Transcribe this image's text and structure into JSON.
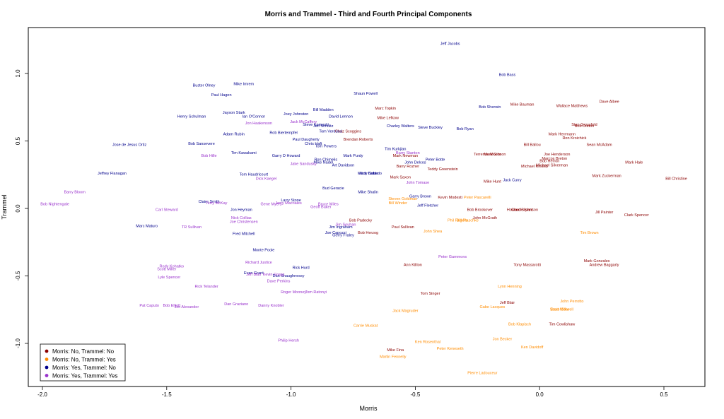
{
  "chart_data": {
    "type": "scatter",
    "title": "Morris and Trammel - Third and Fourth Principal Components",
    "xlabel": "Morris",
    "ylabel": "Trammel",
    "xlim": [
      -2.05,
      0.65
    ],
    "ylim": [
      -1.27,
      1.3
    ],
    "xticks": [
      -2.0,
      -1.5,
      -1.0,
      -0.5,
      0.0,
      0.5
    ],
    "xtick_labels": [
      "-2.0",
      "-1.5",
      "-1.0",
      "-0.5",
      "0.0",
      "0.5"
    ],
    "yticks": [
      -1.0,
      -0.5,
      0.0,
      0.5,
      1.0
    ],
    "ytick_labels": [
      "-1.0",
      "-0.5",
      "0.0",
      "0.5",
      "1.0"
    ],
    "grid": false,
    "legend_position": "bottom-left",
    "series": [
      {
        "name": "Morris: No, Trammel: No",
        "color": "#8b0000",
        "points": [
          {
            "label": "Dave Albee",
            "x": 0.28,
            "y": 0.79
          },
          {
            "label": "Marc Topkin",
            "x": -0.62,
            "y": 0.74
          },
          {
            "label": "Mike Bauman",
            "x": -0.07,
            "y": 0.77
          },
          {
            "label": "Wallace Matthews",
            "x": 0.13,
            "y": 0.76
          },
          {
            "label": "Mike Lefkow",
            "x": -0.61,
            "y": 0.67
          },
          {
            "label": "Chaz Scoggins",
            "x": -0.77,
            "y": 0.57
          },
          {
            "label": "Brendan Roberts",
            "x": -0.73,
            "y": 0.51
          },
          {
            "label": "Stan Grossfeld",
            "x": 0.18,
            "y": 0.62
          },
          {
            "label": "Bob Dutton",
            "x": 0.18,
            "y": 0.61
          },
          {
            "label": "Mark Herrmann",
            "x": 0.09,
            "y": 0.55
          },
          {
            "label": "Ron Kroichick",
            "x": 0.14,
            "y": 0.52
          },
          {
            "label": "Bill Ballou",
            "x": -0.03,
            "y": 0.47
          },
          {
            "label": "Sean McAdam",
            "x": 0.24,
            "y": 0.47
          },
          {
            "label": "Mark Newman",
            "x": -0.54,
            "y": 0.39
          },
          {
            "label": "Terrence Moore",
            "x": -0.21,
            "y": 0.4
          },
          {
            "label": "Mark Gibson",
            "x": -0.18,
            "y": 0.4
          },
          {
            "label": "Joe Henderson",
            "x": 0.07,
            "y": 0.4
          },
          {
            "label": "Marcos Breton",
            "x": 0.06,
            "y": 0.37
          },
          {
            "label": "Bob Herron",
            "x": 0.04,
            "y": 0.35
          },
          {
            "label": "Michael Silverman",
            "x": 0.05,
            "y": 0.32
          },
          {
            "label": "Michael Knisley",
            "x": -0.02,
            "y": 0.31
          },
          {
            "label": "Mark Hale",
            "x": 0.38,
            "y": 0.34
          },
          {
            "label": "Barry Rozner",
            "x": -0.53,
            "y": 0.31
          },
          {
            "label": "Teddy Greenstein",
            "x": -0.39,
            "y": 0.29
          },
          {
            "label": "Mark Saxon",
            "x": -0.56,
            "y": 0.23
          },
          {
            "label": "Mark Zuckerman",
            "x": 0.27,
            "y": 0.24
          },
          {
            "label": "Mike Hunt",
            "x": -0.19,
            "y": 0.2
          },
          {
            "label": "Bill Christine",
            "x": 0.55,
            "y": 0.22
          },
          {
            "label": "Kevin Modesti",
            "x": -0.36,
            "y": 0.08
          },
          {
            "label": "Bob Brookover",
            "x": -0.24,
            "y": -0.01
          },
          {
            "label": "Howard Bryant",
            "x": -0.08,
            "y": -0.01
          },
          {
            "label": "Chuck Johnson",
            "x": -0.06,
            "y": -0.01
          },
          {
            "label": "Jill Painter",
            "x": 0.26,
            "y": -0.03
          },
          {
            "label": "Clark Spencer",
            "x": 0.39,
            "y": -0.05
          },
          {
            "label": "John McGrath",
            "x": -0.22,
            "y": -0.07
          },
          {
            "label": "Bob Padecky",
            "x": -0.72,
            "y": -0.09
          },
          {
            "label": "Paul Sullivan",
            "x": -0.55,
            "y": -0.14
          },
          {
            "label": "Bob Herzog",
            "x": -0.69,
            "y": -0.18
          },
          {
            "label": "Ann Killion",
            "x": -0.51,
            "y": -0.42
          },
          {
            "label": "Tony Massarotti",
            "x": -0.05,
            "y": -0.42
          },
          {
            "label": "Mark Gonzales",
            "x": 0.23,
            "y": -0.39
          },
          {
            "label": "Andrew Baggarly",
            "x": 0.26,
            "y": -0.42
          },
          {
            "label": "Tom Singer",
            "x": -0.44,
            "y": -0.63
          },
          {
            "label": "Jeff Blair",
            "x": -0.13,
            "y": -0.7
          },
          {
            "label": "Tim Cowlishaw",
            "x": 0.09,
            "y": -0.86
          },
          {
            "label": "Mike Fina",
            "x": -0.58,
            "y": -1.05
          }
        ]
      },
      {
        "name": "Morris: No, Trammel: Yes",
        "color": "#ff8c00",
        "points": [
          {
            "label": "Peter Pascarelli",
            "x": -0.25,
            "y": 0.08
          },
          {
            "label": "Steven Goldman",
            "x": -0.55,
            "y": 0.07
          },
          {
            "label": "Bill Winder",
            "x": -0.57,
            "y": 0.04
          },
          {
            "label": "Phil Rogers",
            "x": -0.33,
            "y": -0.09
          },
          {
            "label": "Bill Plaschke",
            "x": -0.29,
            "y": -0.09
          },
          {
            "label": "John Shea",
            "x": -0.43,
            "y": -0.17
          },
          {
            "label": "Tim Brown",
            "x": 0.2,
            "y": -0.18
          },
          {
            "label": "Lynn Henning",
            "x": -0.12,
            "y": -0.58
          },
          {
            "label": "John Perrotto",
            "x": 0.13,
            "y": -0.69
          },
          {
            "label": "Gabe Lacques",
            "x": -0.19,
            "y": -0.73
          },
          {
            "label": "Scott Miller",
            "x": 0.08,
            "y": -0.75
          },
          {
            "label": "Dave Colwell",
            "x": 0.09,
            "y": -0.75
          },
          {
            "label": "Jack Magruder",
            "x": -0.54,
            "y": -0.76
          },
          {
            "label": "Carrie Muskat",
            "x": -0.7,
            "y": -0.87
          },
          {
            "label": "Bob Klapisch",
            "x": -0.08,
            "y": -0.86
          },
          {
            "label": "Jon Becker",
            "x": -0.15,
            "y": -0.97
          },
          {
            "label": "Ken Rosenthal",
            "x": -0.45,
            "y": -0.99
          },
          {
            "label": "Ken Davidoff",
            "x": -0.03,
            "y": -1.03
          },
          {
            "label": "Peter Keneseth",
            "x": -0.36,
            "y": -1.04
          },
          {
            "label": "Martin Fennelly",
            "x": -0.59,
            "y": -1.1
          },
          {
            "label": "Pierre Ladouceur",
            "x": -0.23,
            "y": -1.22
          }
        ]
      },
      {
        "name": "Morris: Yes, Trammel: No",
        "color": "#00008b",
        "points": [
          {
            "label": "Jeff Jacobs",
            "x": -0.36,
            "y": 1.22
          },
          {
            "label": "Bob Bass",
            "x": -0.13,
            "y": 0.99
          },
          {
            "label": "Buster Olney",
            "x": -1.35,
            "y": 0.91
          },
          {
            "label": "Mike Imrem",
            "x": -1.19,
            "y": 0.92
          },
          {
            "label": "Paul Hagen",
            "x": -1.28,
            "y": 0.84
          },
          {
            "label": "Shaun Powell",
            "x": -0.7,
            "y": 0.85
          },
          {
            "label": "Bob Sherwin",
            "x": -0.2,
            "y": 0.75
          },
          {
            "label": "Bill Madden",
            "x": -0.87,
            "y": 0.73
          },
          {
            "label": "Jayson Stark",
            "x": -1.23,
            "y": 0.71
          },
          {
            "label": "Ian O'Connor",
            "x": -1.15,
            "y": 0.68
          },
          {
            "label": "Joey Johnston",
            "x": -0.98,
            "y": 0.7
          },
          {
            "label": "David Lennon",
            "x": -0.8,
            "y": 0.68
          },
          {
            "label": "Henry Schulman",
            "x": -1.4,
            "y": 0.68
          },
          {
            "label": "Charley Walters",
            "x": -0.56,
            "y": 0.61
          },
          {
            "label": "Steve Buckley",
            "x": -0.44,
            "y": 0.6
          },
          {
            "label": "Bob Ryan",
            "x": -0.3,
            "y": 0.59
          },
          {
            "label": "Steve Kornacki",
            "x": -0.9,
            "y": 0.62
          },
          {
            "label": "Jeff Schultz",
            "x": -0.87,
            "y": 0.61
          },
          {
            "label": "Tom Verducci",
            "x": -0.84,
            "y": 0.57
          },
          {
            "label": "Adam Rubin",
            "x": -1.23,
            "y": 0.55
          },
          {
            "label": "Rob Biertempfel",
            "x": -1.03,
            "y": 0.56
          },
          {
            "label": "Paul Daugherty",
            "x": -0.94,
            "y": 0.51
          },
          {
            "label": "Chris Haft",
            "x": -0.91,
            "y": 0.48
          },
          {
            "label": "Jose de Jesus Ortiz",
            "x": -1.65,
            "y": 0.47
          },
          {
            "label": "Bob Sansevere",
            "x": -1.36,
            "y": 0.48
          },
          {
            "label": "Tom Powers",
            "x": -0.86,
            "y": 0.46
          },
          {
            "label": "Tim Kurkjian",
            "x": -0.58,
            "y": 0.44
          },
          {
            "label": "Tim Kawakami",
            "x": -1.19,
            "y": 0.41
          },
          {
            "label": "Garry D Howard",
            "x": -1.02,
            "y": 0.39
          },
          {
            "label": "Mark Purdy",
            "x": -0.75,
            "y": 0.39
          },
          {
            "label": "Ron Chimelis",
            "x": -0.86,
            "y": 0.36
          },
          {
            "label": "Peter Botte",
            "x": -0.42,
            "y": 0.36
          },
          {
            "label": "Mike Nadel",
            "x": -0.87,
            "y": 0.34
          },
          {
            "label": "John Delcos",
            "x": -0.5,
            "y": 0.34
          },
          {
            "label": "Art Davidson",
            "x": -0.79,
            "y": 0.32
          },
          {
            "label": "Jeffrey Flanagan",
            "x": -1.72,
            "y": 0.26
          },
          {
            "label": "Tom Haudricourt",
            "x": -1.15,
            "y": 0.25
          },
          {
            "label": "Marty Noble",
            "x": -0.69,
            "y": 0.26
          },
          {
            "label": "Nick Cafardo",
            "x": -0.68,
            "y": 0.26
          },
          {
            "label": "Jack Curry",
            "x": -0.11,
            "y": 0.21
          },
          {
            "label": "Bud Geracie",
            "x": -0.83,
            "y": 0.15
          },
          {
            "label": "Mike Shalin",
            "x": -0.69,
            "y": 0.12
          },
          {
            "label": "Garry Brown",
            "x": -0.48,
            "y": 0.09
          },
          {
            "label": "Claire Smith",
            "x": -1.33,
            "y": 0.05
          },
          {
            "label": "Larry Stone",
            "x": -1.0,
            "y": 0.06
          },
          {
            "label": "Jeff Fletcher",
            "x": -0.45,
            "y": 0.02
          },
          {
            "label": "Jon Heyman",
            "x": -1.2,
            "y": -0.01
          },
          {
            "label": "Marc Maturo",
            "x": -1.58,
            "y": -0.13
          },
          {
            "label": "Jim Ingraham",
            "x": -0.8,
            "y": -0.14
          },
          {
            "label": "Joe Capozzi",
            "x": -0.82,
            "y": -0.18
          },
          {
            "label": "Gerry Fraley",
            "x": -0.79,
            "y": -0.2
          },
          {
            "label": "Fred Mitchell",
            "x": -1.19,
            "y": -0.19
          },
          {
            "label": "Monte Poole",
            "x": -1.11,
            "y": -0.31
          },
          {
            "label": "Rick Hurd",
            "x": -0.96,
            "y": -0.44
          },
          {
            "label": "Evan Grant",
            "x": -1.15,
            "y": -0.48
          },
          {
            "label": "Dan Shaughnessy",
            "x": -1.01,
            "y": -0.5
          }
        ]
      },
      {
        "name": "Morris: Yes, Trammel: Yes",
        "color": "#9932cc",
        "points": [
          {
            "label": "Jack McCaffery",
            "x": -0.95,
            "y": 0.64
          },
          {
            "label": "Jon Haakenson",
            "x": -1.13,
            "y": 0.63
          },
          {
            "label": "Barry Stanton",
            "x": -0.53,
            "y": 0.41
          },
          {
            "label": "Bob Hille",
            "x": -1.33,
            "y": 0.39
          },
          {
            "label": "Jake Sandusky",
            "x": -0.95,
            "y": 0.33
          },
          {
            "label": "Dick Kaegel",
            "x": -1.1,
            "y": 0.22
          },
          {
            "label": "John Tomase",
            "x": -0.49,
            "y": 0.19
          },
          {
            "label": "Barry Bloom",
            "x": -1.87,
            "y": 0.12
          },
          {
            "label": "Terry McKay",
            "x": -1.3,
            "y": 0.04
          },
          {
            "label": "Jerry Macriales",
            "x": -1.01,
            "y": 0.04
          },
          {
            "label": "Gene Myers",
            "x": -1.08,
            "y": 0.03
          },
          {
            "label": "Bruce Miles",
            "x": -0.85,
            "y": 0.03
          },
          {
            "label": "Bob Nightengale",
            "x": -1.95,
            "y": 0.03
          },
          {
            "label": "Geoff Baker",
            "x": -0.88,
            "y": 0.01
          },
          {
            "label": "Carl Steward",
            "x": -1.5,
            "y": -0.01
          },
          {
            "label": "Nick Collias",
            "x": -1.2,
            "y": -0.07
          },
          {
            "label": "Joe Christensen",
            "x": -1.19,
            "y": -0.1
          },
          {
            "label": "TR Sullivan",
            "x": -1.4,
            "y": -0.14
          },
          {
            "label": "Jim Souhan",
            "x": -0.78,
            "y": -0.12
          },
          {
            "label": "Peter Gammons",
            "x": -0.35,
            "y": -0.36
          },
          {
            "label": "Richard Justice",
            "x": -1.13,
            "y": -0.4
          },
          {
            "label": "Rody Kohatko",
            "x": -1.48,
            "y": -0.43
          },
          {
            "label": "Scott Miller",
            "x": -1.5,
            "y": -0.45
          },
          {
            "label": "Lyle Spencer",
            "x": -1.49,
            "y": -0.51
          },
          {
            "label": "Jeff Blair",
            "x": -1.15,
            "y": -0.49
          },
          {
            "label": "Kevin Gregg",
            "x": -1.07,
            "y": -0.49
          },
          {
            "label": "Dave Perkins",
            "x": -1.05,
            "y": -0.54
          },
          {
            "label": "Rick Telander",
            "x": -1.34,
            "y": -0.58
          },
          {
            "label": "Roger Mooney",
            "x": -0.99,
            "y": -0.62
          },
          {
            "label": "Tom Ratonyi",
            "x": -0.9,
            "y": -0.62
          },
          {
            "label": "Pat Caputo",
            "x": -1.57,
            "y": -0.72
          },
          {
            "label": "Bob Elliott",
            "x": -1.48,
            "y": -0.72
          },
          {
            "label": "Jim Alexander",
            "x": -1.42,
            "y": -0.73
          },
          {
            "label": "Dan Graziano",
            "x": -1.22,
            "y": -0.71
          },
          {
            "label": "Danny Knobler",
            "x": -1.08,
            "y": -0.72
          },
          {
            "label": "Philip Hersh",
            "x": -1.01,
            "y": -0.98
          }
        ]
      }
    ]
  }
}
